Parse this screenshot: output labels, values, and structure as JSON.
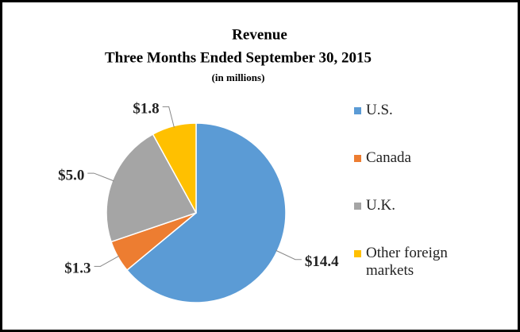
{
  "chart_data": {
    "type": "pie",
    "title": "Revenue",
    "subtitle": "Three Months Ended September 30, 2015",
    "units_label": "(in millions)",
    "categories": [
      "U.S.",
      "Canada",
      "U.K.",
      "Other foreign markets"
    ],
    "values": [
      14.4,
      1.3,
      5.0,
      1.8
    ],
    "value_labels": [
      "$14.4",
      "$1.3",
      "$5.0",
      "$1.8"
    ],
    "colors": [
      "#5b9bd5",
      "#ed7d31",
      "#a5a5a5",
      "#ffc000"
    ],
    "legend": "right"
  }
}
